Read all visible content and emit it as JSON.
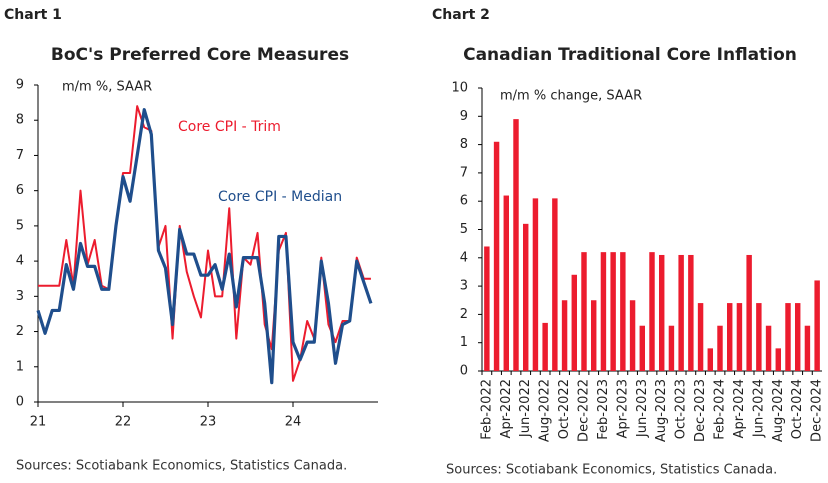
{
  "chart_data": [
    {
      "type": "line",
      "heading": "Chart 1",
      "title": "BoC's Preferred Core Measures",
      "subtitle": "m/m %, SAAR",
      "note": "Sources: Scotiabank Economics, Statistics Canada.",
      "x": [
        21,
        21.083,
        21.167,
        21.25,
        21.333,
        21.417,
        21.5,
        21.583,
        21.667,
        21.75,
        21.833,
        21.917,
        22,
        22.083,
        22.167,
        22.25,
        22.333,
        22.417,
        22.5,
        22.583,
        22.667,
        22.75,
        22.833,
        22.917,
        23,
        23.083,
        23.167,
        23.25,
        23.333,
        23.417,
        23.5,
        23.583,
        23.667,
        23.75,
        23.833,
        23.917,
        24,
        24.083,
        24.167,
        24.25,
        24.333,
        24.417,
        24.5,
        24.583,
        24.667,
        24.75,
        24.833,
        24.917
      ],
      "series": [
        {
          "name": "Core CPI - Trim",
          "color": "#ec1c2e",
          "values": [
            3.3,
            3.3,
            3.3,
            3.3,
            4.6,
            3.3,
            6.0,
            3.9,
            4.6,
            3.3,
            3.2,
            5.0,
            6.5,
            6.5,
            8.4,
            7.8,
            7.7,
            4.4,
            5.0,
            1.8,
            5.0,
            3.7,
            3.0,
            2.4,
            4.3,
            3.0,
            3.0,
            5.5,
            1.8,
            4.1,
            3.9,
            4.8,
            2.2,
            1.5,
            4.3,
            4.8,
            0.6,
            1.2,
            2.3,
            1.8,
            4.1,
            2.2,
            1.7,
            2.3,
            2.3,
            4.1,
            3.5,
            3.5
          ]
        },
        {
          "name": "Core CPI - Median",
          "color": "#1f4e8c",
          "values": [
            2.6,
            1.95,
            2.6,
            2.6,
            3.9,
            3.2,
            4.5,
            3.85,
            3.85,
            3.2,
            3.2,
            5.0,
            6.4,
            5.7,
            7.0,
            8.3,
            7.6,
            4.3,
            3.8,
            2.2,
            4.9,
            4.2,
            4.2,
            3.6,
            3.6,
            3.9,
            3.2,
            4.2,
            2.7,
            4.1,
            4.1,
            4.1,
            2.8,
            0.55,
            4.7,
            4.7,
            1.7,
            1.2,
            1.7,
            1.7,
            4.0,
            2.8,
            1.1,
            2.2,
            2.3,
            4.0,
            3.4,
            2.8
          ]
        }
      ],
      "xlim": [
        21,
        25
      ],
      "xticks": [
        21,
        22,
        23,
        24
      ],
      "ylim": [
        0,
        9
      ],
      "yticks": [
        0,
        1,
        2,
        3,
        4,
        5,
        6,
        7,
        8,
        9
      ]
    },
    {
      "type": "bar",
      "heading": "Chart 2",
      "title": "Canadian Traditional Core Inflation",
      "subtitle": "m/m % change, SAAR",
      "note": "Sources: Scotiabank Economics, Statistics Canada.",
      "categories": [
        "Feb-2022",
        null,
        "Apr-2022",
        null,
        "Jun-2022",
        null,
        "Aug-2022",
        null,
        "Oct-2022",
        null,
        "Dec-2022",
        null,
        "Feb-2023",
        null,
        "Apr-2023",
        null,
        "Jun-2023",
        null,
        "Aug-2023",
        null,
        "Oct-2023",
        null,
        "Dec-2023",
        null,
        "Feb-2024",
        null,
        "Apr-2024",
        null,
        "Jun-2024",
        null,
        "Aug-2024",
        null,
        "Oct-2024",
        null,
        "Dec-2024"
      ],
      "values": [
        4.4,
        8.1,
        6.2,
        8.9,
        5.2,
        6.1,
        1.7,
        6.1,
        2.5,
        3.4,
        4.2,
        2.5,
        4.2,
        4.2,
        4.2,
        2.5,
        1.6,
        4.2,
        4.1,
        1.6,
        4.1,
        4.1,
        2.4,
        0.8,
        1.6,
        2.4,
        2.4,
        4.1,
        2.4,
        1.6,
        0.8,
        2.4,
        2.4,
        1.6,
        3.2
      ],
      "color": "#ec1c2e",
      "ylim": [
        0,
        10
      ],
      "yticks": [
        0,
        1,
        2,
        3,
        4,
        5,
        6,
        7,
        8,
        9,
        10
      ]
    }
  ]
}
